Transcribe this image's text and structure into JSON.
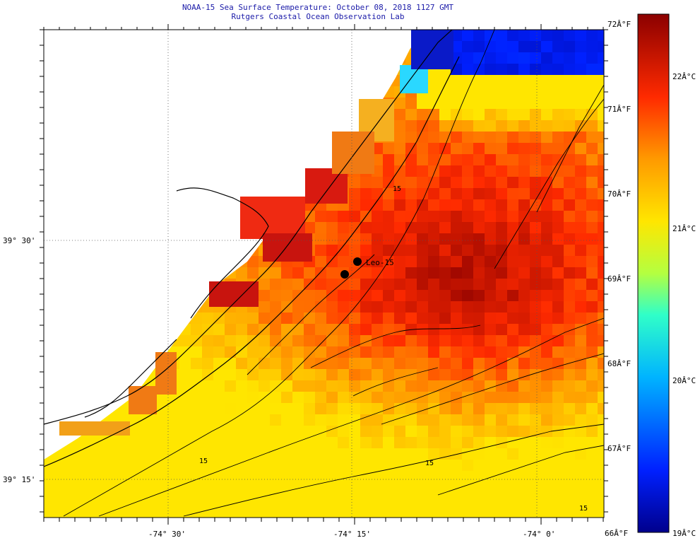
{
  "header": {
    "title": "NOAA-15 Sea Surface Temperature:  October 08, 2018 1127 GMT",
    "subtitle": "Rutgers Coastal Ocean Observation Lab"
  },
  "axes": {
    "lon_ticks": [
      "-74° 30'",
      "-74° 15'",
      "-74° 0'"
    ],
    "lat_ticks": [
      "39° 30'",
      "39° 15'"
    ]
  },
  "colorbar": {
    "fahrenheit": [
      "72Â°F",
      "71Â°F",
      "70Â°F",
      "69Â°F",
      "68Â°F",
      "67Â°F",
      "66Â°F"
    ],
    "celsius": [
      "22Â°C",
      "21Â°C",
      "20Â°C",
      "19Â°C"
    ],
    "range_f": [
      66,
      72
    ]
  },
  "station": {
    "label": "Leo-15"
  },
  "contour_labels": [
    "15",
    "15",
    "15",
    "15"
  ],
  "colors": {
    "land": "#ffffff",
    "ocean_cold": "#0a0a8a",
    "ocean_warm": "#8b0000",
    "title": "#1a1aa8"
  }
}
